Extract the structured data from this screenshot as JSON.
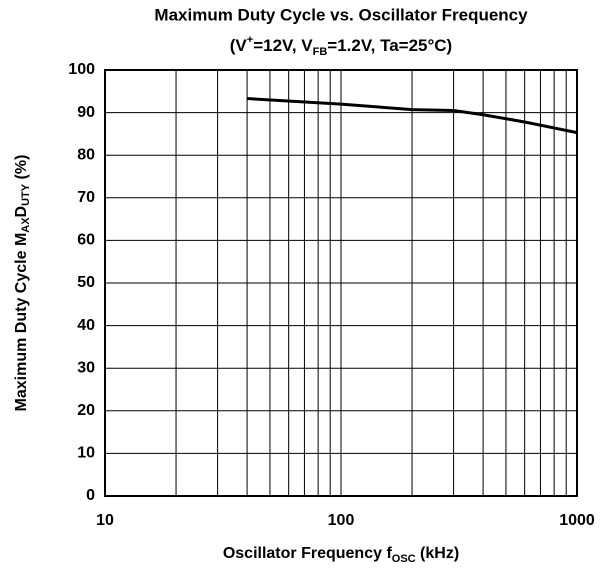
{
  "chart_data": {
    "type": "line",
    "title": "Maximum Duty Cycle vs. Oscillator Frequency",
    "subtitle": [
      "(V",
      "+",
      "=12V, V",
      "FB",
      "=1.2V, Ta=25°C)"
    ],
    "x_label": [
      "Oscillator Frequency  f",
      "OSC",
      "  (kHz)"
    ],
    "y_label": [
      "Maximum Duty Cycle  M",
      "AX",
      "D",
      "UTY",
      "  (%)"
    ],
    "x": [
      40,
      100,
      200,
      300,
      400,
      600,
      1000
    ],
    "series": [
      {
        "color": "#000000",
        "values": [
          93.3,
          92,
          90.7,
          90.5,
          89.5,
          87.8,
          85.3
        ]
      }
    ],
    "xlim": [
      10,
      1000
    ],
    "xticks": [
      10,
      100,
      1000
    ],
    "xminor_ticks": [
      20,
      30,
      40,
      50,
      60,
      70,
      80,
      90,
      200,
      300,
      400,
      500,
      600,
      700,
      800,
      900
    ],
    "xscale": "log",
    "ylim": [
      0,
      100
    ],
    "yticks": [
      0,
      10,
      20,
      30,
      40,
      50,
      60,
      70,
      80,
      90,
      100
    ],
    "grid": true
  }
}
